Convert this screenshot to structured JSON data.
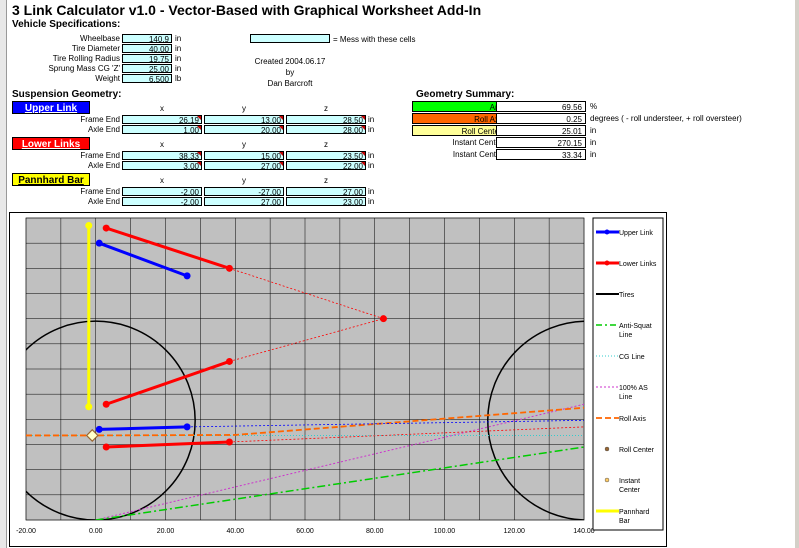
{
  "title": "3 Link Calculator v1.0  -  Vector-Based with Graphical Worksheet Add-In",
  "vehicle": {
    "heading": "Vehicle Specifications:",
    "rows": [
      {
        "label": "Wheelbase",
        "value": "140.9",
        "unit": "in"
      },
      {
        "label": "Tire Diameter",
        "value": "40.00",
        "unit": "in"
      },
      {
        "label": "Tire Rolling Radius",
        "value": "19.75",
        "unit": "in"
      },
      {
        "label": "Sprung Mass CG 'Z'",
        "value": "25.00",
        "unit": "in"
      },
      {
        "label": "Weight",
        "value": "6,500",
        "unit": "lb"
      }
    ]
  },
  "legend_note": "= Mess with these cells",
  "created": "Created 2004.06.17",
  "by": "by",
  "author": "Dan Barcroft",
  "suspension": {
    "heading": "Suspension Geometry:",
    "cols": [
      "x",
      "y",
      "z"
    ],
    "upper": {
      "name": "Upper Link",
      "color": "#0000ff",
      "text": "#ffffff",
      "rows": [
        {
          "label": "Frame End",
          "x": "26.19",
          "y": "13.00",
          "z": "28.50",
          "unit": "in"
        },
        {
          "label": "Axle End",
          "x": "1.00",
          "y": "20.00",
          "z": "28.00",
          "unit": "in"
        }
      ]
    },
    "lower": {
      "name": "Lower Links",
      "color": "#ff0000",
      "text": "#ffffff",
      "rows": [
        {
          "label": "Frame End",
          "x": "38.33",
          "y": "15.00",
          "z": "23.50",
          "unit": "in"
        },
        {
          "label": "Axle End",
          "x": "3.00",
          "y": "27.00",
          "z": "22.00",
          "unit": "in"
        }
      ]
    },
    "panhard": {
      "name": "Pannhard Bar",
      "color": "#ffff00",
      "text": "#000000",
      "rows": [
        {
          "label": "Frame End",
          "x": "-2.00",
          "y": "-27.00",
          "z": "27.00",
          "unit": "in"
        },
        {
          "label": "Axle End",
          "x": "-2.00",
          "y": "27.00",
          "z": "23.00",
          "unit": "in"
        }
      ]
    }
  },
  "summary": {
    "heading": "Geometry Summary:",
    "rows": [
      {
        "label": "Anti-Squat",
        "value": "69.56",
        "unit": "%",
        "color": "#00ff00"
      },
      {
        "label": "Roll Axis Angle",
        "value": "0.25",
        "unit": "degrees ( - roll understeer, + roll oversteer)",
        "color": "#ff6600"
      },
      {
        "label": "Roll Center Height",
        "value": "25.01",
        "unit": "in",
        "color": "#ffff99"
      },
      {
        "label": "Instant Center X-Axis",
        "value": "270.15",
        "unit": "in",
        "color": "#ffffff"
      },
      {
        "label": "Instant Center Z-Axis",
        "value": "33.34",
        "unit": "in",
        "color": "#ffffff"
      }
    ]
  },
  "chart_data": {
    "type": "scatter",
    "xlim": [
      -20,
      140
    ],
    "ylim": [
      0,
      60
    ],
    "x_ticks": [
      "-20.00",
      "0.00",
      "20.00",
      "40.00",
      "60.00",
      "80.00",
      "100.00",
      "120.00",
      "140.00"
    ],
    "grid": true,
    "legend_placement": "right",
    "series": [
      {
        "name": "Upper Link",
        "color": "#0000ff",
        "segments": [
          [
            [
              1.0,
              55.0
            ],
            [
              26.19,
              48.5
            ]
          ],
          [
            [
              1.0,
              18.0
            ],
            [
              26.19,
              18.5
            ]
          ]
        ]
      },
      {
        "name": "Lower Links",
        "color": "#ff0000",
        "segments": [
          [
            [
              3.0,
              58.0
            ],
            [
              38.33,
              50.0
            ]
          ],
          [
            [
              3.0,
              23.0
            ],
            [
              38.33,
              31.5
            ]
          ],
          [
            [
              3.0,
              14.5
            ],
            [
              38.33,
              15.5
            ]
          ]
        ]
      },
      {
        "name": "Tires",
        "color": "#000000",
        "circles": [
          [
            0,
            19.75,
            19.75
          ],
          [
            140.9,
            19.75,
            19.75
          ]
        ]
      },
      {
        "name": "Anti-Squat Line",
        "color": "#00cc00",
        "points": [
          [
            0,
            0
          ],
          [
            140,
            14.5
          ]
        ]
      },
      {
        "name": "CG Line",
        "color": "#33cccc",
        "points": [
          [
            -20,
            16.8
          ],
          [
            140,
            16.8
          ]
        ]
      },
      {
        "name": "100% AS Line",
        "color": "#cc33cc",
        "points": [
          [
            0,
            0
          ],
          [
            140,
            23
          ]
        ]
      },
      {
        "name": "Roll Axis",
        "color": "#ff6600",
        "points": [
          [
            -20,
            16.8
          ],
          [
            0,
            16.8
          ],
          [
            40,
            16.9
          ],
          [
            140,
            22.3
          ]
        ]
      },
      {
        "name": "Roll Center",
        "color": "#996633",
        "points": [
          [
            -1,
            16.8
          ]
        ]
      },
      {
        "name": "Instant Center",
        "color": "#ffcc66",
        "points": [
          [
            82.5,
            40.0
          ]
        ]
      },
      {
        "name": "Pannhard Bar",
        "color": "#ffff00",
        "segments": [
          [
            [
              -2.0,
              58.5
            ],
            [
              -2.0,
              22.5
            ]
          ]
        ]
      }
    ],
    "instant_center_lines": {
      "color": "#ff0000",
      "from": [
        [
          38.33,
          50.0
        ],
        [
          38.33,
          31.5
        ]
      ],
      "to": [
        82.5,
        40.0
      ]
    },
    "extra_dotted": [
      {
        "color": "#0000ff",
        "from": [
          26.19,
          18.5
        ],
        "to": [
          140,
          19.8
        ]
      },
      {
        "color": "#ff0000",
        "from": [
          38.33,
          15.5
        ],
        "to": [
          140,
          18.5
        ]
      }
    ]
  }
}
